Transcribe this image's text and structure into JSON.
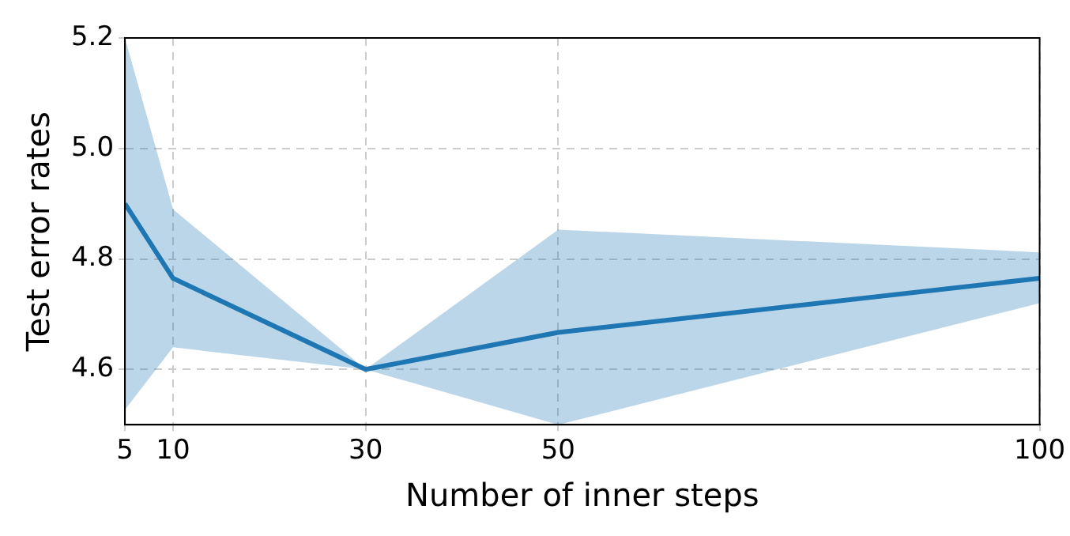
{
  "chart_data": {
    "type": "line",
    "xlabel": "Number of inner steps",
    "ylabel": "Test error rates",
    "x": [
      5,
      10,
      30,
      50,
      100
    ],
    "series": [
      {
        "color": "#1f77b4",
        "values": [
          4.9,
          4.765,
          4.6,
          4.667,
          4.765
        ],
        "lower": [
          4.527,
          4.64,
          4.6,
          4.5,
          4.72
        ],
        "upper": [
          5.2,
          4.89,
          4.6,
          4.853,
          4.812
        ]
      }
    ],
    "xlim": [
      5,
      100
    ],
    "xticks": [
      5,
      10,
      30,
      50,
      100
    ],
    "ylim": [
      4.5,
      5.2
    ],
    "yticks": [
      4.6,
      4.8,
      {
        "value": 5,
        "label": "5.0"
      },
      5.2
    ],
    "grid": true,
    "legend": false,
    "marker": "none",
    "line_style": "solid"
  }
}
